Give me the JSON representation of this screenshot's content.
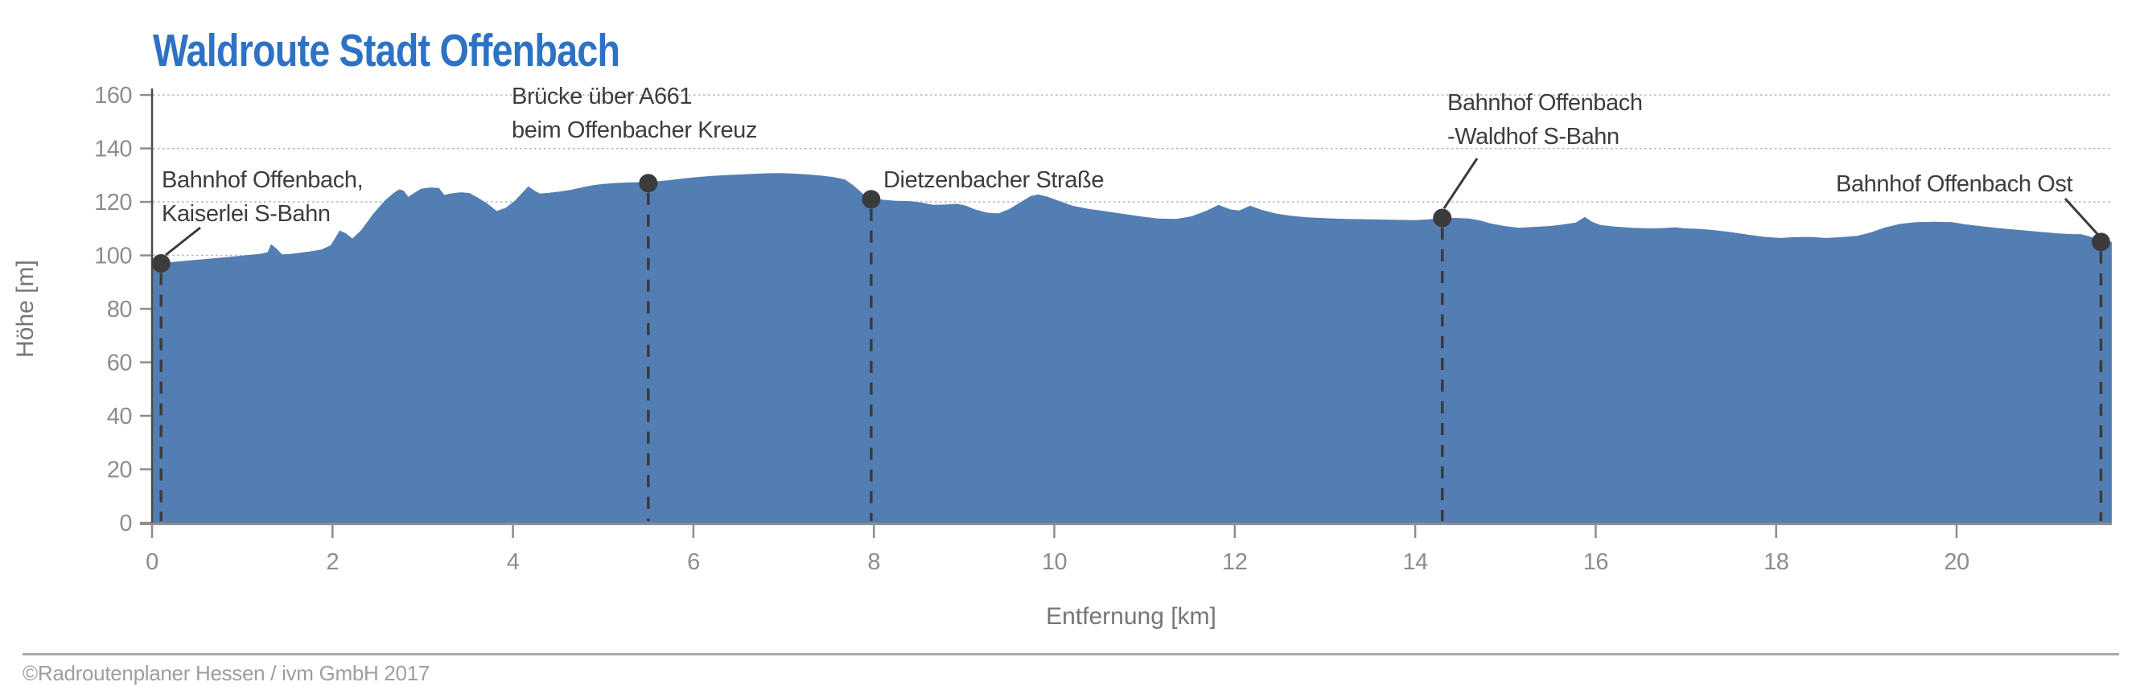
{
  "title": "Waldroute Stadt Offenbach",
  "footer": "©Radroutenplaner Hessen / ivm GmbH 2017",
  "colors": {
    "title_blue": "#2d72c4",
    "area_fill": "#527eb3",
    "tick_text": "#8d8d8d",
    "axis_title_text": "#767676",
    "annotation_text": "#3d3d3d",
    "marker": "#3b3b3b",
    "gridline": "#b4b4b4",
    "y_axis_line": "#4a4a4a",
    "x_axis_line": "#8f8f8f",
    "footer_text": "#9e9e9e",
    "footer_rule": "#ababab"
  },
  "chart_data": {
    "type": "area",
    "title": "Waldroute Stadt Offenbach",
    "xlabel": "Entfernung [km]",
    "ylabel": "Höhe [m]",
    "xlim": [
      0,
      21.72
    ],
    "ylim": [
      0,
      160
    ],
    "xticks": [
      0,
      2,
      4,
      6,
      8,
      10,
      12,
      14,
      16,
      18,
      20
    ],
    "yticks": [
      0,
      20,
      40,
      60,
      80,
      100,
      120,
      140,
      160
    ],
    "grid": "horizontal-dotted",
    "legend": "none",
    "profile_points_km_m": [
      [
        0.0,
        96.3
      ],
      [
        0.1,
        97.0
      ],
      [
        0.25,
        97.6
      ],
      [
        0.45,
        98.2
      ],
      [
        0.65,
        98.8
      ],
      [
        0.85,
        99.4
      ],
      [
        1.05,
        100.1
      ],
      [
        1.2,
        100.6
      ],
      [
        1.28,
        101.2
      ],
      [
        1.32,
        104.2
      ],
      [
        1.38,
        102.5
      ],
      [
        1.44,
        100.4
      ],
      [
        1.52,
        100.5
      ],
      [
        1.62,
        100.9
      ],
      [
        1.75,
        101.5
      ],
      [
        1.88,
        102.2
      ],
      [
        1.98,
        103.8
      ],
      [
        2.08,
        109.3
      ],
      [
        2.15,
        108.2
      ],
      [
        2.22,
        106.3
      ],
      [
        2.32,
        109.5
      ],
      [
        2.45,
        115.5
      ],
      [
        2.58,
        120.5
      ],
      [
        2.68,
        123.4
      ],
      [
        2.74,
        124.7
      ],
      [
        2.79,
        124.2
      ],
      [
        2.84,
        121.9
      ],
      [
        2.9,
        123.2
      ],
      [
        2.98,
        124.9
      ],
      [
        3.08,
        125.4
      ],
      [
        3.18,
        125.2
      ],
      [
        3.24,
        122.6
      ],
      [
        3.3,
        123.1
      ],
      [
        3.42,
        123.6
      ],
      [
        3.52,
        123.3
      ],
      [
        3.62,
        121.4
      ],
      [
        3.72,
        119.3
      ],
      [
        3.82,
        116.6
      ],
      [
        3.92,
        117.8
      ],
      [
        4.02,
        120.4
      ],
      [
        4.1,
        123.3
      ],
      [
        4.17,
        125.8
      ],
      [
        4.24,
        124.2
      ],
      [
        4.3,
        123.1
      ],
      [
        4.4,
        123.4
      ],
      [
        4.52,
        123.9
      ],
      [
        4.64,
        124.5
      ],
      [
        4.76,
        125.4
      ],
      [
        4.88,
        126.2
      ],
      [
        5.0,
        126.7
      ],
      [
        5.15,
        127.1
      ],
      [
        5.3,
        127.3
      ],
      [
        5.45,
        127.4
      ],
      [
        5.6,
        127.7
      ],
      [
        5.75,
        128.2
      ],
      [
        5.9,
        128.8
      ],
      [
        6.05,
        129.3
      ],
      [
        6.2,
        129.7
      ],
      [
        6.4,
        130.1
      ],
      [
        6.6,
        130.4
      ],
      [
        6.8,
        130.7
      ],
      [
        6.95,
        130.8
      ],
      [
        7.1,
        130.6
      ],
      [
        7.25,
        130.3
      ],
      [
        7.4,
        129.9
      ],
      [
        7.55,
        129.3
      ],
      [
        7.68,
        128.4
      ],
      [
        7.78,
        126.0
      ],
      [
        7.88,
        123.0
      ],
      [
        7.97,
        121.4
      ],
      [
        8.1,
        120.8
      ],
      [
        8.25,
        120.4
      ],
      [
        8.4,
        120.3
      ],
      [
        8.52,
        119.8
      ],
      [
        8.66,
        118.9
      ],
      [
        8.78,
        119.0
      ],
      [
        8.92,
        119.3
      ],
      [
        9.02,
        118.6
      ],
      [
        9.12,
        117.2
      ],
      [
        9.25,
        116.0
      ],
      [
        9.38,
        115.7
      ],
      [
        9.5,
        117.3
      ],
      [
        9.62,
        119.8
      ],
      [
        9.74,
        122.2
      ],
      [
        9.82,
        122.8
      ],
      [
        9.92,
        122.0
      ],
      [
        10.05,
        120.4
      ],
      [
        10.2,
        118.6
      ],
      [
        10.38,
        117.4
      ],
      [
        10.55,
        116.6
      ],
      [
        10.75,
        115.6
      ],
      [
        10.95,
        114.6
      ],
      [
        11.15,
        113.8
      ],
      [
        11.35,
        113.6
      ],
      [
        11.52,
        114.6
      ],
      [
        11.68,
        116.6
      ],
      [
        11.82,
        118.9
      ],
      [
        11.95,
        117.2
      ],
      [
        12.05,
        116.8
      ],
      [
        12.17,
        118.6
      ],
      [
        12.3,
        117.0
      ],
      [
        12.45,
        115.7
      ],
      [
        12.6,
        114.9
      ],
      [
        12.8,
        114.2
      ],
      [
        13.0,
        113.9
      ],
      [
        13.25,
        113.6
      ],
      [
        13.5,
        113.5
      ],
      [
        13.75,
        113.3
      ],
      [
        14.0,
        113.2
      ],
      [
        14.15,
        113.5
      ],
      [
        14.3,
        114.1
      ],
      [
        14.45,
        114.0
      ],
      [
        14.6,
        113.8
      ],
      [
        14.72,
        113.0
      ],
      [
        14.84,
        111.9
      ],
      [
        15.0,
        110.9
      ],
      [
        15.15,
        110.3
      ],
      [
        15.3,
        110.6
      ],
      [
        15.5,
        111.0
      ],
      [
        15.65,
        111.6
      ],
      [
        15.78,
        112.3
      ],
      [
        15.88,
        114.4
      ],
      [
        15.96,
        112.6
      ],
      [
        16.05,
        111.4
      ],
      [
        16.2,
        110.8
      ],
      [
        16.4,
        110.3
      ],
      [
        16.6,
        110.1
      ],
      [
        16.75,
        110.2
      ],
      [
        16.88,
        110.5
      ],
      [
        17.0,
        110.1
      ],
      [
        17.15,
        109.9
      ],
      [
        17.3,
        109.5
      ],
      [
        17.5,
        108.7
      ],
      [
        17.7,
        107.7
      ],
      [
        17.88,
        106.9
      ],
      [
        18.05,
        106.5
      ],
      [
        18.2,
        106.8
      ],
      [
        18.38,
        106.9
      ],
      [
        18.55,
        106.5
      ],
      [
        18.72,
        106.8
      ],
      [
        18.9,
        107.3
      ],
      [
        19.05,
        108.6
      ],
      [
        19.2,
        110.4
      ],
      [
        19.38,
        111.8
      ],
      [
        19.55,
        112.4
      ],
      [
        19.75,
        112.6
      ],
      [
        19.95,
        112.4
      ],
      [
        20.1,
        111.6
      ],
      [
        20.3,
        110.8
      ],
      [
        20.5,
        110.1
      ],
      [
        20.7,
        109.5
      ],
      [
        20.9,
        108.9
      ],
      [
        21.1,
        108.3
      ],
      [
        21.25,
        108.0
      ],
      [
        21.38,
        107.9
      ],
      [
        21.45,
        107.3
      ],
      [
        21.55,
        106.3
      ],
      [
        21.62,
        105.1
      ],
      [
        21.67,
        104.4
      ],
      [
        21.72,
        105.2
      ]
    ],
    "stations": [
      {
        "km": 0.1,
        "elevation_m": 97,
        "label_lines": [
          "Bahnhof Offenbach,",
          "Kaiserlei S-Bahn"
        ]
      },
      {
        "km": 5.5,
        "elevation_m": 127,
        "label_lines": [
          "Brücke über A661",
          "beim Offenbacher Kreuz"
        ]
      },
      {
        "km": 7.97,
        "elevation_m": 121,
        "label_lines": [
          "Dietzenbacher Straße"
        ]
      },
      {
        "km": 14.3,
        "elevation_m": 114,
        "label_lines": [
          "Bahnhof Offenbach",
          "-Waldhof S-Bahn"
        ]
      },
      {
        "km": 21.6,
        "elevation_m": 105,
        "label_lines": [
          "Bahnhof Offenbach Ost"
        ]
      }
    ]
  }
}
